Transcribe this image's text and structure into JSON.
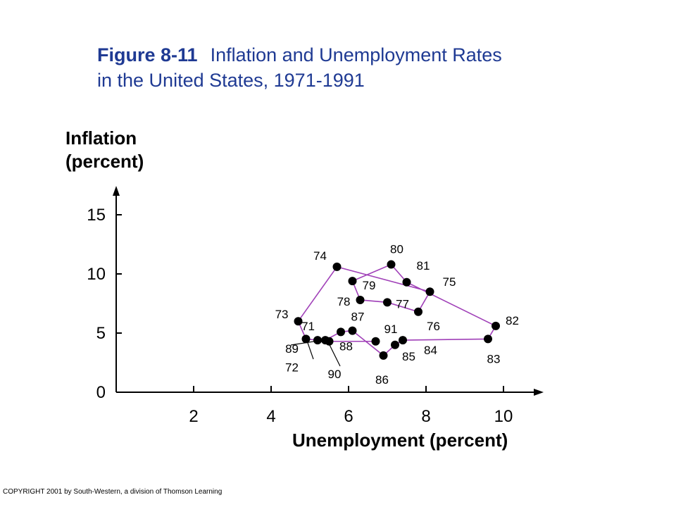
{
  "title": {
    "figure_label": "Figure 8-11",
    "line1": "Inflation and Unemployment Rates",
    "line2": "in the United States, 1971-1991"
  },
  "copyright": "COPYRIGHT 2001 by South-Western, a division of Thomson Learning",
  "colors": {
    "title": "#1f3a93",
    "line": "#a040b8",
    "point": "#000000"
  },
  "chart_data": {
    "type": "line",
    "xlabel": "Unemployment (percent)",
    "ylabel_line1": "Inflation",
    "ylabel_line2": "(percent)",
    "xlim": [
      0,
      11
    ],
    "ylim": [
      0,
      17
    ],
    "xticks": [
      2,
      4,
      6,
      8,
      10
    ],
    "yticks": [
      0,
      5,
      10,
      15
    ],
    "grid": false,
    "series": [
      {
        "points": [
          {
            "label": "71",
            "x": 5.2,
            "y": 4.4
          },
          {
            "label": "72",
            "x": 4.9,
            "y": 4.5
          },
          {
            "label": "73",
            "x": 4.7,
            "y": 6.0
          },
          {
            "label": "74",
            "x": 5.7,
            "y": 10.6
          },
          {
            "label": "75",
            "x": 8.1,
            "y": 8.5
          },
          {
            "label": "76",
            "x": 7.8,
            "y": 6.8
          },
          {
            "label": "77",
            "x": 7.0,
            "y": 7.6
          },
          {
            "label": "78",
            "x": 6.3,
            "y": 7.8
          },
          {
            "label": "79",
            "x": 6.1,
            "y": 9.4
          },
          {
            "label": "80",
            "x": 7.1,
            "y": 10.8
          },
          {
            "label": "81",
            "x": 7.5,
            "y": 9.3
          },
          {
            "label": "82",
            "x": 9.8,
            "y": 5.6
          },
          {
            "label": "83",
            "x": 9.6,
            "y": 4.5
          },
          {
            "label": "84",
            "x": 7.4,
            "y": 4.4
          },
          {
            "label": "85",
            "x": 7.2,
            "y": 4.0
          },
          {
            "label": "86",
            "x": 6.9,
            "y": 3.1
          },
          {
            "label": "87",
            "x": 6.1,
            "y": 5.2
          },
          {
            "label": "88",
            "x": 5.8,
            "y": 5.1
          },
          {
            "label": "89",
            "x": 5.4,
            "y": 4.4
          },
          {
            "label": "90",
            "x": 5.5,
            "y": 4.3
          },
          {
            "label": "91",
            "x": 6.7,
            "y": 4.3
          }
        ]
      }
    ]
  }
}
